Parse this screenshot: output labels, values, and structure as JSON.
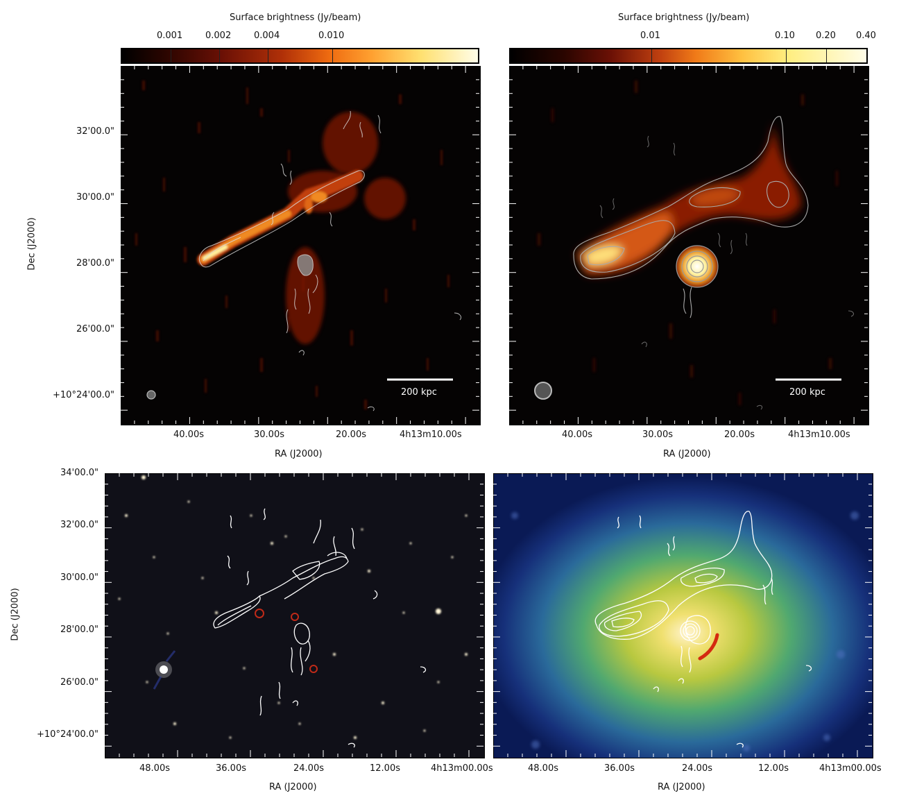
{
  "top_left": {
    "colorbar_title": "Surface brightness (Jy/beam)",
    "colorbar_ticks": [
      "0.001",
      "0.002",
      "0.004",
      "0.010"
    ],
    "ra_ticks": [
      "40.00s",
      "30.00s",
      "20.00s",
      "4h13m10.00s"
    ],
    "dec_ticks": [
      "32'00.0\"",
      "30'00.0\"",
      "28'00.0\"",
      "26'00.0\"",
      "+10°24'00.0\""
    ],
    "xlabel": "RA (J2000)",
    "ylabel": "Dec (J2000)",
    "scalebar_label": "200 kpc"
  },
  "top_right": {
    "colorbar_title": "Surface brightness (Jy/beam)",
    "colorbar_ticks": [
      "0.01",
      "0.10",
      "0.20",
      "0.40"
    ],
    "ra_ticks": [
      "40.00s",
      "30.00s",
      "20.00s",
      "4h13m10.00s"
    ],
    "xlabel": "RA (J2000)",
    "scalebar_label": "200 kpc"
  },
  "bottom_left": {
    "ra_ticks": [
      "48.00s",
      "36.00s",
      "24.00s",
      "12.00s",
      "4h13m00.00s"
    ],
    "dec_ticks": [
      "34'00.0\"",
      "32'00.0\"",
      "30'00.0\"",
      "28'00.0\"",
      "26'00.0\"",
      "+10°24'00.0\""
    ],
    "xlabel": "RA (J2000)",
    "ylabel": "Dec (J2000)"
  },
  "bottom_right": {
    "ra_ticks": [
      "48.00s",
      "36.00s",
      "24.00s",
      "12.00s",
      "4h13m00.00s"
    ],
    "xlabel": "RA (J2000)"
  },
  "colors": {
    "radio_bg": "#050303",
    "optical_bg": "#101018",
    "xray_bg": "#0a1a55",
    "contour": "#ffffff",
    "shock_arc": "#d42a10"
  }
}
